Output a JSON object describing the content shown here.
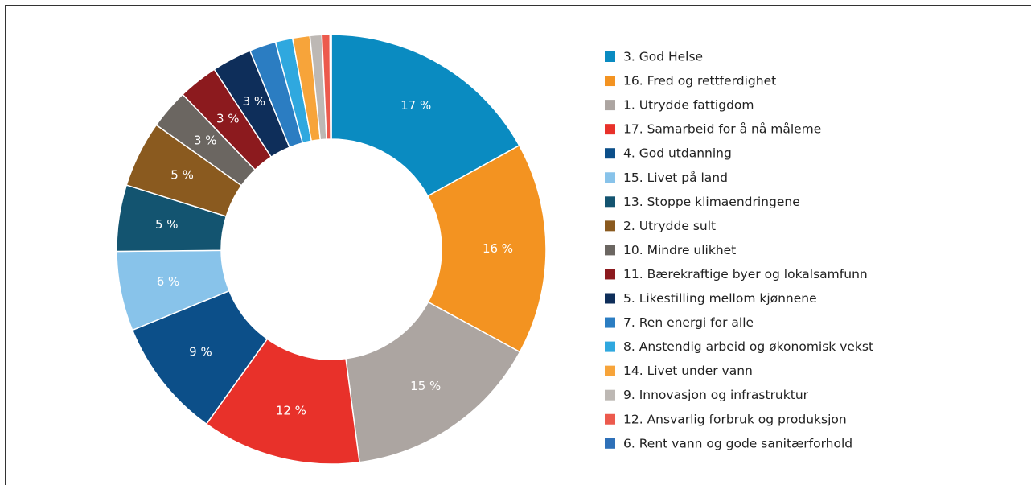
{
  "chart_data": {
    "type": "pie",
    "donut": true,
    "categories": [
      "3. God Helse",
      "16. Fred og rettferdighet",
      "1. Utrydde fattigdom",
      "17. Samarbeid for å nå måleme",
      "4. God utdanning",
      "15. Livet på land",
      "13. Stoppe klimaendringene",
      "2. Utrydde sult",
      "10. Mindre ulikhet",
      "11. Bærekraftige byer og lokalsamfunn",
      "5. Likestilling mellom kjønnene",
      "7. Ren energi for alle",
      "8. Anstendig arbeid og økonomisk vekst",
      "14. Livet under vann",
      "9. Innovasjon og infrastruktur",
      "12. Ansvarlig forbruk og produksjon",
      "6. Rent vann og gode sanitærforhold"
    ],
    "values": [
      17,
      16,
      15,
      12,
      9,
      6,
      5,
      5,
      3,
      3,
      3,
      2,
      1.3,
      1.3,
      0.9,
      0.6,
      0.1
    ],
    "value_labels": [
      "17 %",
      "16 %",
      "15 %",
      "12 %",
      "9 %",
      "6 %",
      "5 %",
      "5 %",
      "3 %",
      "3 %",
      "3 %",
      null,
      null,
      null,
      null,
      null,
      null
    ],
    "colors": [
      "#0a8bc1",
      "#f39321",
      "#aca5a1",
      "#e8312a",
      "#0c4f89",
      "#88c3ea",
      "#135470",
      "#8a5a1f",
      "#6b6661",
      "#8c1a1e",
      "#0e2e5a",
      "#2b7dc2",
      "#2fa8df",
      "#f7a43a",
      "#bdb8b4",
      "#ec5a4d",
      "#2e70b8"
    ]
  }
}
